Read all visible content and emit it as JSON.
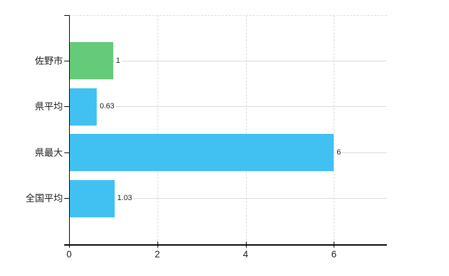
{
  "chart_data": {
    "type": "bar",
    "orientation": "horizontal",
    "title": "",
    "xlabel": "",
    "ylabel": "",
    "categories": [
      "佐野市",
      "県平均",
      "県最大",
      "全国平均"
    ],
    "values": [
      1,
      0.63,
      6,
      1.03
    ],
    "value_labels": [
      "1",
      "0.63",
      "6",
      "1.03"
    ],
    "bar_colors": [
      "#65ca7a",
      "#41c1f1",
      "#41c1f1",
      "#41c1f1"
    ],
    "x_ticks": [
      0,
      2,
      4,
      6
    ],
    "x_tick_labels": [
      "0",
      "2",
      "4",
      "6"
    ],
    "xlim": [
      0,
      7.2
    ],
    "grid": true,
    "legend": false
  },
  "colors": {
    "bar_green": "#65ca7a",
    "bar_blue": "#41c1f1",
    "grid_horizontal": "#d5dcd5",
    "grid_vertical": "#d9d9e2",
    "axis": "#000000",
    "text": "#1a1a1a",
    "background": "#ffffff"
  }
}
